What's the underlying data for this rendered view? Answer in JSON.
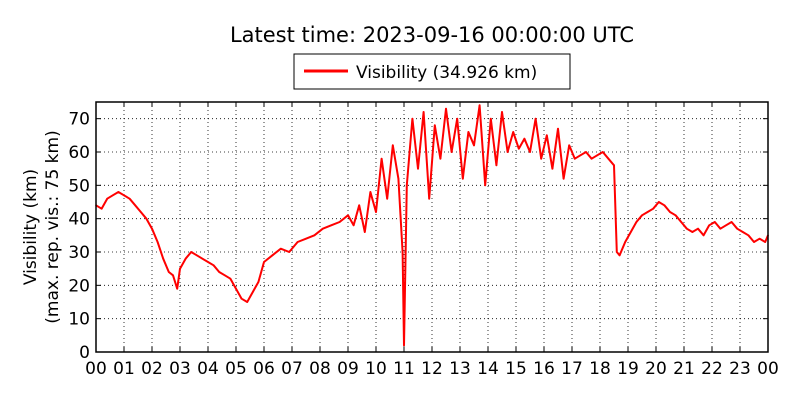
{
  "chart_data": {
    "type": "line",
    "title": "Latest time: 2023-09-16 00:00:00 UTC",
    "ylabel_line1": "Visibility (km)",
    "ylabel_line2": "(max. rep. vis.: 75 km)",
    "xlabel": "",
    "ylim": [
      0,
      75
    ],
    "y_ticks": [
      "0",
      "10",
      "20",
      "30",
      "40",
      "50",
      "60",
      "70"
    ],
    "x_ticks": [
      "00",
      "01",
      "02",
      "03",
      "04",
      "05",
      "06",
      "07",
      "08",
      "09",
      "10",
      "11",
      "12",
      "13",
      "14",
      "15",
      "16",
      "17",
      "18",
      "19",
      "20",
      "21",
      "22",
      "23",
      "00"
    ],
    "xlim_hours": [
      0,
      24
    ],
    "grid": true,
    "legend_placement": "top-center",
    "series": [
      {
        "name": "Visibility (34.926 km)",
        "color": "#ff0000",
        "x_hours": [
          0,
          0.2,
          0.4,
          0.6,
          0.8,
          1.0,
          1.2,
          1.4,
          1.6,
          1.8,
          2.0,
          2.2,
          2.4,
          2.6,
          2.75,
          2.9,
          3.0,
          3.2,
          3.4,
          3.6,
          3.8,
          4.0,
          4.2,
          4.4,
          4.6,
          4.8,
          5.0,
          5.2,
          5.4,
          5.6,
          5.8,
          6.0,
          6.3,
          6.6,
          6.9,
          7.2,
          7.5,
          7.8,
          8.1,
          8.4,
          8.7,
          9.0,
          9.2,
          9.4,
          9.6,
          9.8,
          10.0,
          10.2,
          10.4,
          10.6,
          10.8,
          10.95,
          11.0,
          11.1,
          11.3,
          11.5,
          11.7,
          11.9,
          12.1,
          12.3,
          12.5,
          12.7,
          12.9,
          13.1,
          13.3,
          13.5,
          13.7,
          13.9,
          14.1,
          14.3,
          14.5,
          14.7,
          14.9,
          15.1,
          15.3,
          15.5,
          15.7,
          15.9,
          16.1,
          16.3,
          16.5,
          16.7,
          16.9,
          17.1,
          17.3,
          17.5,
          17.7,
          17.9,
          18.1,
          18.3,
          18.5,
          18.6,
          18.7,
          18.9,
          19.1,
          19.3,
          19.5,
          19.7,
          19.9,
          20.1,
          20.3,
          20.5,
          20.7,
          20.9,
          21.1,
          21.3,
          21.5,
          21.7,
          21.9,
          22.1,
          22.3,
          22.5,
          22.7,
          22.9,
          23.1,
          23.3,
          23.5,
          23.7,
          23.9,
          24.0
        ],
        "values": [
          44,
          43,
          46,
          47,
          48,
          47,
          46,
          44,
          42,
          40,
          37,
          33,
          28,
          24,
          23,
          19,
          25,
          28,
          30,
          29,
          28,
          27,
          26,
          24,
          23,
          22,
          19,
          16,
          15,
          18,
          21,
          27,
          29,
          31,
          30,
          33,
          34,
          35,
          37,
          38,
          39,
          41,
          38,
          44,
          36,
          48,
          42,
          58,
          46,
          62,
          52,
          30,
          2,
          50,
          70,
          55,
          72,
          46,
          68,
          58,
          73,
          60,
          70,
          52,
          66,
          62,
          74,
          50,
          70,
          56,
          72,
          60,
          66,
          61,
          64,
          60,
          70,
          58,
          65,
          55,
          67,
          52,
          62,
          58,
          59,
          60,
          58,
          59,
          60,
          58,
          56,
          30,
          29,
          33,
          36,
          39,
          41,
          42,
          43,
          45,
          44,
          42,
          41,
          39,
          37,
          36,
          37,
          35,
          38,
          39,
          37,
          38,
          39,
          37,
          36,
          35,
          33,
          34,
          33,
          35
        ]
      }
    ]
  }
}
